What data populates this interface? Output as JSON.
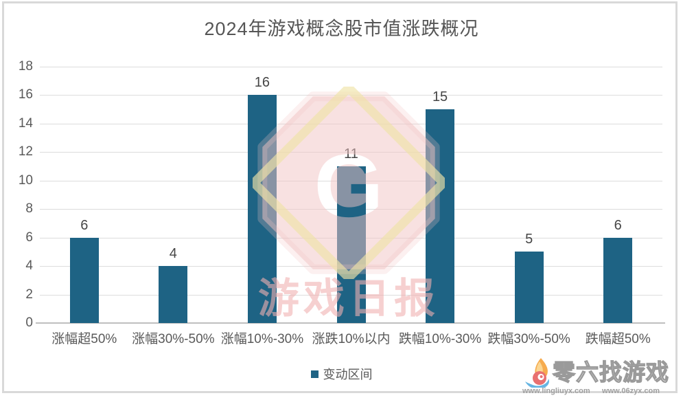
{
  "title": "2024年游戏概念股市值涨跌概况",
  "chart_data": {
    "type": "bar",
    "title": "2024年游戏概念股市值涨跌概况",
    "categories": [
      "涨幅超50%",
      "涨幅30%-50%",
      "涨幅10%-30%",
      "涨跌10%以内",
      "跌幅10%-30%",
      "跌幅30%-50%",
      "跌幅超50%"
    ],
    "series": [
      {
        "name": "变动区间",
        "values": [
          6,
          4,
          16,
          11,
          15,
          5,
          6
        ]
      }
    ],
    "ylim": [
      0,
      18
    ],
    "yticks": [
      0,
      2,
      4,
      6,
      8,
      10,
      12,
      14,
      16,
      18
    ],
    "grid": true,
    "legend_position": "bottom",
    "bar_color": "#1e6384",
    "xlabel": "",
    "ylabel": ""
  },
  "legend": {
    "label": "变动区间",
    "swatch_color": "#1e6384"
  },
  "watermarks": {
    "center": {
      "letter": "G",
      "caption": "游戏日报"
    },
    "corner": {
      "brand": "零六找游戏",
      "url_left": "www.lingliuyx.com",
      "url_right": "www.06zyx.com"
    }
  },
  "colors": {
    "bar": "#1e6384",
    "gridline": "#dcdcdc",
    "axis_line": "#bfbfbf",
    "tick_text": "#595959",
    "value_text": "#454545",
    "title_text": "#555555",
    "watermark_pink": "#f2c4c4",
    "watermark_yellow": "#efe3a8"
  }
}
